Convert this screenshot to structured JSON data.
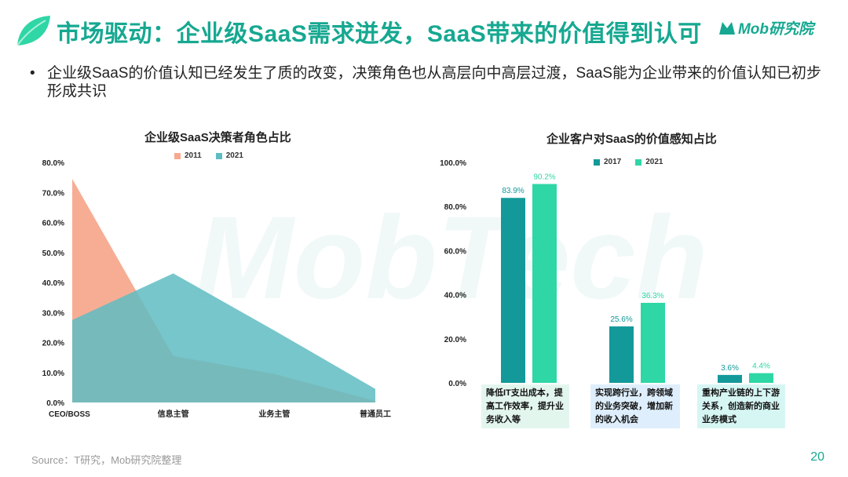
{
  "header": {
    "title": "市场驱动：企业级SaaS需求迸发，SaaS带来的价值得到认可",
    "brand": "Mob研究院"
  },
  "bullet": "企业级SaaS的价值认知已经发生了质的改变，决策角色也从高层向中高层过渡，SaaS能为企业带来的价值认知已初步形成共识",
  "watermark_text": "MobTech",
  "source": "Source：T研究，Mob研究院整理",
  "page_number": "20",
  "colors": {
    "accent": "#16a891",
    "area_2011": "#f7a98e",
    "area_2021": "#5fbcc2",
    "bar_2017": "#14999a",
    "bar_2021": "#2fd6a6"
  },
  "chart_data": [
    {
      "type": "area",
      "title": "企业级SaaS决策者角色占比",
      "categories": [
        "CEO/BOSS",
        "信息主管",
        "业务主管",
        "普通员工"
      ],
      "series": [
        {
          "name": "2011",
          "values": [
            74.5,
            15.5,
            9.5,
            0.5
          ]
        },
        {
          "name": "2021",
          "values": [
            27.5,
            43.0,
            24.0,
            4.5
          ]
        }
      ],
      "ylim": [
        0,
        80
      ],
      "yticks": [
        "0.0%",
        "10.0%",
        "20.0%",
        "30.0%",
        "40.0%",
        "50.0%",
        "60.0%",
        "70.0%",
        "80.0%"
      ],
      "legend": "top"
    },
    {
      "type": "bar",
      "title": "企业客户对SaaS的价值感知占比",
      "categories": [
        "降低IT支出成本，提高工作效率，提升业务收入等",
        "实现跨行业，跨领域的业务突破，增加新的收入机会",
        "重构产业链的上下游关系，创造新的商业业务模式"
      ],
      "series": [
        {
          "name": "2017",
          "values": [
            83.9,
            25.6,
            3.6
          ]
        },
        {
          "name": "2021",
          "values": [
            90.2,
            36.3,
            4.4
          ]
        }
      ],
      "data_labels": [
        [
          "83.9%",
          "25.6%",
          "3.6%"
        ],
        [
          "90.2%",
          "36.3%",
          "4.4%"
        ]
      ],
      "ylim": [
        0,
        100
      ],
      "yticks": [
        "0.0%",
        "20.0%",
        "40.0%",
        "60.0%",
        "80.0%",
        "100.0%"
      ],
      "legend": "top"
    }
  ]
}
